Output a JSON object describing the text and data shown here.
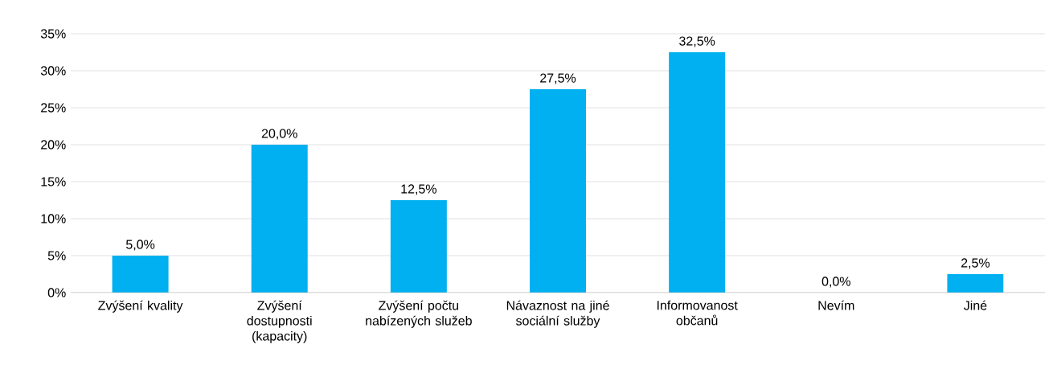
{
  "chart_data": {
    "type": "bar",
    "categories": [
      "Zvýšení kvality",
      "Zvýšení dostupnosti (kapacity)",
      "Zvýšení počtu nabízených služeb",
      "Návaznost na jiné sociální služby",
      "Informovanost občanů",
      "Nevím",
      "Jiné"
    ],
    "values": [
      5.0,
      20.0,
      12.5,
      27.5,
      32.5,
      0.0,
      2.5
    ],
    "value_labels": [
      "5,0%",
      "20,0%",
      "12,5%",
      "27,5%",
      "32,5%",
      "0,0%",
      "2,5%"
    ],
    "color": "#00b0f0",
    "ylim": [
      0,
      35
    ],
    "yticks": [
      {
        "value": 0,
        "label": "0%"
      },
      {
        "value": 5,
        "label": "5%"
      },
      {
        "value": 10,
        "label": "10%"
      },
      {
        "value": 15,
        "label": "15%"
      },
      {
        "value": 20,
        "label": "20%"
      },
      {
        "value": 25,
        "label": "25%"
      },
      {
        "value": 30,
        "label": "30%"
      },
      {
        "value": 35,
        "label": "35%"
      }
    ],
    "grid": "y"
  }
}
